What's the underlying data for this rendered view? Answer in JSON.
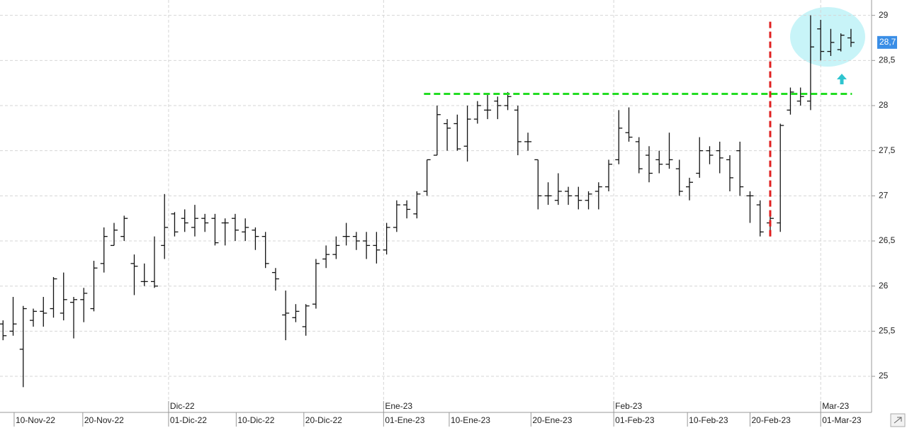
{
  "chart_data": {
    "type": "ohlc",
    "color": "#111111",
    "xlim": [
      -0.3,
      85.9
    ],
    "ylim": [
      24.6,
      29.17
    ],
    "yticks": [
      25,
      {
        "value": 25.5,
        "label": "25,5"
      },
      26,
      {
        "value": 26.5,
        "label": "26,5"
      },
      27,
      {
        "value": 27.5,
        "label": "27,5"
      },
      28,
      {
        "value": 28.5,
        "label": "28,5"
      },
      29
    ],
    "xticks": [
      {
        "value": 1.1,
        "label": "10-Nov-22"
      },
      {
        "value": 7.9,
        "label": "20-Nov-22"
      },
      {
        "value": 16.4,
        "label": "01-Dic-22"
      },
      {
        "value": 23.1,
        "label": "10-Dic-22"
      },
      {
        "value": 29.8,
        "label": "20-Dic-22"
      },
      {
        "value": 37.7,
        "label": "01-Ene-23"
      },
      {
        "value": 44.2,
        "label": "10-Ene-23"
      },
      {
        "value": 52.3,
        "label": "20-Ene-23"
      },
      {
        "value": 60.5,
        "label": "01-Feb-23"
      },
      {
        "value": 67.8,
        "label": "10-Feb-23"
      },
      {
        "value": 74.0,
        "label": "20-Feb-23"
      },
      {
        "value": 81.0,
        "label": "01-Mar-23"
      }
    ],
    "month_ticks": [
      {
        "value": 16.4,
        "label": "Dic-22"
      },
      {
        "value": 37.7,
        "label": "Ene-23"
      },
      {
        "value": 60.5,
        "label": "Feb-23"
      },
      {
        "value": 81.0,
        "label": "Mar-23"
      }
    ],
    "grid": true,
    "x": [
      0,
      1,
      2,
      3,
      4,
      5,
      6,
      7,
      8,
      9,
      10,
      11,
      12,
      13,
      14,
      15,
      16,
      17,
      18,
      19,
      20,
      21,
      22,
      23,
      24,
      25,
      26,
      27,
      28,
      29,
      30,
      31,
      32,
      33,
      34,
      35,
      36,
      37,
      38,
      39,
      40,
      41,
      42,
      43,
      44,
      45,
      46,
      47,
      48,
      49,
      50,
      51,
      52,
      53,
      54,
      55,
      56,
      57,
      58,
      59,
      60,
      61,
      62,
      63,
      64,
      65,
      66,
      67,
      68,
      69,
      70,
      71,
      72,
      73,
      74,
      75,
      76,
      77,
      78,
      79,
      80,
      81,
      82,
      83,
      84
    ],
    "open": [
      25.58,
      25.5,
      25.3,
      25.62,
      25.72,
      25.75,
      25.7,
      25.82,
      25.85,
      25.75,
      26.25,
      26.45,
      26.55,
      26.25,
      26.05,
      26.05,
      26.45,
      26.8,
      26.75,
      26.65,
      26.75,
      26.75,
      26.7,
      26.75,
      26.6,
      26.62,
      26.55,
      26.15,
      25.68,
      25.65,
      25.55,
      25.8,
      26.3,
      26.35,
      26.55,
      26.55,
      26.5,
      26.45,
      26.4,
      26.65,
      26.9,
      26.8,
      27.05,
      27.45,
      27.8,
      27.8,
      27.55,
      27.85,
      27.95,
      28.05,
      28,
      27.95,
      27.6,
      27.4,
      27,
      26.95,
      27.05,
      27,
      26.95,
      27.05,
      27.1,
      27.4,
      27.7,
      27.6,
      27.45,
      27.4,
      27.35,
      27.3,
      27.1,
      27.25,
      27.5,
      27.5,
      27.4,
      27.5,
      27,
      26.9,
      26.7,
      26.7,
      27.95,
      28.05,
      28.05,
      28.85,
      28.6,
      28.62,
      28.75
    ],
    "high": [
      25.62,
      25.88,
      25.78,
      25.75,
      25.88,
      26.1,
      26.15,
      25.88,
      25.98,
      26.28,
      26.65,
      26.7,
      26.78,
      26.35,
      26.25,
      26.55,
      27.02,
      26.82,
      26.85,
      26.9,
      26.8,
      26.8,
      26.75,
      26.8,
      26.75,
      26.65,
      26.6,
      26.2,
      25.95,
      25.8,
      25.8,
      26.3,
      26.45,
      26.55,
      26.7,
      26.6,
      26.6,
      26.6,
      26.7,
      26.95,
      26.95,
      27.05,
      27.4,
      28,
      27.85,
      27.9,
      28,
      28.05,
      28.12,
      28.1,
      28.15,
      28,
      27.7,
      27.4,
      27.15,
      27.25,
      27.1,
      27.1,
      27.05,
      27.15,
      27.4,
      27.95,
      27.98,
      27.65,
      27.55,
      27.5,
      27.7,
      27.4,
      27.2,
      27.65,
      27.55,
      27.6,
      27.45,
      27.6,
      27.05,
      26.95,
      26.8,
      27.8,
      28.2,
      28.2,
      29,
      28.95,
      28.85,
      28.8,
      28.85
    ],
    "low": [
      25.4,
      25.45,
      24.88,
      25.55,
      25.55,
      25.65,
      25.62,
      25.42,
      25.6,
      25.72,
      26.15,
      26.45,
      26.5,
      25.9,
      26,
      25.98,
      26.3,
      26.55,
      26.6,
      26.55,
      26.6,
      26.45,
      26.45,
      26.5,
      26.5,
      26.4,
      26.2,
      25.95,
      25.4,
      25.6,
      25.45,
      25.75,
      26.2,
      26.3,
      26.45,
      26.4,
      26.3,
      26.25,
      26.35,
      26.6,
      26.75,
      26.75,
      27,
      27.45,
      27.5,
      27.5,
      27.38,
      27.8,
      27.85,
      27.85,
      27.95,
      27.45,
      27.5,
      26.85,
      26.9,
      26.9,
      26.9,
      26.85,
      26.85,
      26.85,
      27.05,
      27.35,
      27.6,
      27.25,
      27.15,
      27.25,
      27.3,
      27,
      26.95,
      27.2,
      27.35,
      27.25,
      27.05,
      27,
      26.7,
      26.55,
      26.55,
      26.6,
      27.9,
      28,
      27.95,
      28.5,
      28.55,
      28.6,
      28.65
    ],
    "close": [
      25.45,
      25.58,
      25.75,
      25.72,
      25.7,
      26.08,
      25.85,
      25.85,
      25.92,
      26.2,
      26.55,
      26.62,
      26.75,
      26.22,
      26.05,
      26,
      26.65,
      26.6,
      26.7,
      26.75,
      26.7,
      26.48,
      26.7,
      26.62,
      26.65,
      26.55,
      26.25,
      26.08,
      25.7,
      25.72,
      25.78,
      26.25,
      26.35,
      26.45,
      26.55,
      26.5,
      26.45,
      26.4,
      26.65,
      26.9,
      26.85,
      27.02,
      27.4,
      27.9,
      27.75,
      27.52,
      27.85,
      28,
      27.95,
      28,
      28.1,
      27.6,
      27.6,
      27,
      27,
      27.05,
      27,
      26.95,
      27.02,
      27.1,
      27.35,
      27.75,
      27.65,
      27.3,
      27.25,
      27.35,
      27.4,
      27.05,
      27.15,
      27.5,
      27.45,
      27.42,
      27.2,
      27.1,
      27,
      26.6,
      26.75,
      27.78,
      28.15,
      28.1,
      28.65,
      28.6,
      28.7,
      28.78,
      28.7
    ],
    "last_price": {
      "value": 28.7,
      "label": "28,7",
      "color": "#3a8ee6"
    },
    "hline": {
      "value": 28.13,
      "x": [
        41.7,
        84.1
      ],
      "color": "#22dd22"
    },
    "vline": {
      "x": 76.0,
      "y": [
        26.55,
        28.95
      ],
      "color": "#e02020"
    }
  }
}
